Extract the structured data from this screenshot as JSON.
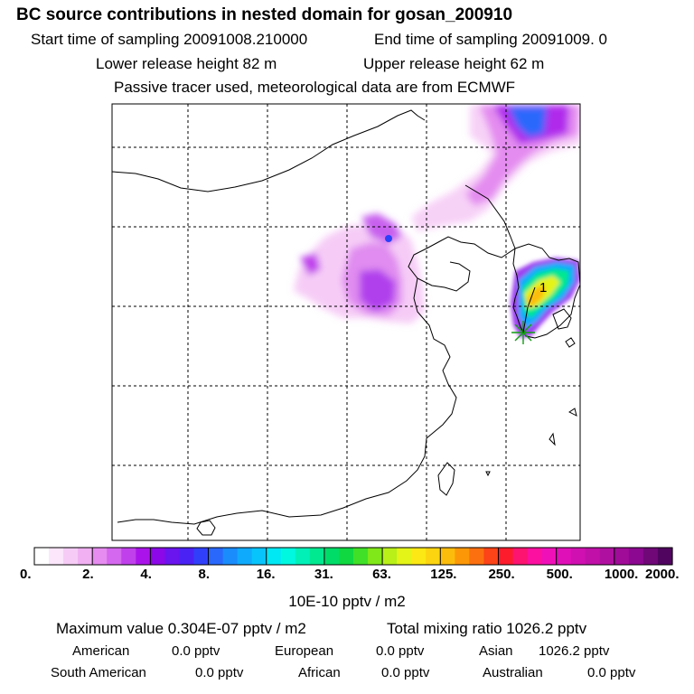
{
  "header": {
    "title": "BC  source contributions in nested domain for gosan_200910",
    "start_label": "Start time of sampling 20091008.210000",
    "end_label": "End time of sampling 20091009.     0",
    "lower_height": "Lower release height   82 m",
    "upper_height": "Upper release height   62 m",
    "tracer_note": "Passive tracer used, meteorological data are from ECMWF"
  },
  "chart_data": {
    "type": "heatmap",
    "title": "BC  source contributions in nested domain for gosan_200910",
    "colorbar": {
      "tick_labels": [
        "0.",
        "2.",
        "4.",
        "8.",
        "16.",
        "31.",
        "63.",
        "125.",
        "250.",
        "500.",
        "1000.",
        "2000."
      ],
      "units": "10E-10 pptv / m2",
      "colors": [
        "#ffffff",
        "#fbe6fb",
        "#f6ccf6",
        "#f0b0f2",
        "#e68cf0",
        "#d468ee",
        "#c040ec",
        "#aa14ea",
        "#8c08e8",
        "#6a14ee",
        "#4a22f4",
        "#3040fa",
        "#2a68fc",
        "#1a8cfc",
        "#10aafc",
        "#08c4fc",
        "#00e8f4",
        "#00f8e0",
        "#00f0b8",
        "#00e890",
        "#00dc68",
        "#10d840",
        "#40e028",
        "#80e818",
        "#b8f018",
        "#e4f418",
        "#fce814",
        "#fcd410",
        "#fcbc0c",
        "#fc9808",
        "#fc7010",
        "#fc4418",
        "#fc1c2c",
        "#fc1470",
        "#fc10a0",
        "#f010b8",
        "#e010b8",
        "#d010b0",
        "#c010a8",
        "#b010a0",
        "#a00c98",
        "#8c0890",
        "#700878",
        "#500460"
      ]
    },
    "map": {
      "release_marker": "asterisk",
      "point_label": "1",
      "grid": "dashed"
    },
    "stats": {
      "maximum": "Maximum value  0.304E-07 pptv / m2",
      "total": "Total mixing ratio     1026.2 pptv"
    },
    "regions": [
      {
        "name": "American",
        "value": "0.0 pptv"
      },
      {
        "name": "European",
        "value": "0.0 pptv"
      },
      {
        "name": "Asian",
        "value": "1026.2 pptv"
      },
      {
        "name": "South American",
        "value": "0.0 pptv"
      },
      {
        "name": "African",
        "value": "0.0 pptv"
      },
      {
        "name": "Australian",
        "value": "0.0 pptv"
      }
    ]
  }
}
